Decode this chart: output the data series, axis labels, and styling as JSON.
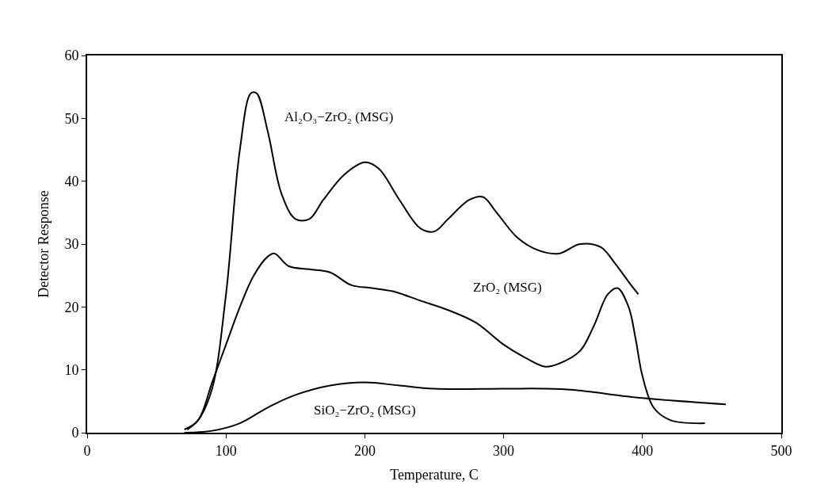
{
  "chart_data": {
    "type": "line",
    "xlabel": "Temperature, C",
    "ylabel": "Detector Response",
    "xlim": [
      0,
      500
    ],
    "xticks": [
      0,
      100,
      200,
      300,
      400,
      500
    ],
    "ylim": [
      0,
      60
    ],
    "yticks": [
      0,
      10,
      20,
      30,
      40,
      50,
      60
    ],
    "marker": "none",
    "line_style": "solid",
    "series": [
      {
        "name": "Al₂O₃−ZrO₂ (MSG)",
        "color": "#000000",
        "x": [
          72,
          80,
          90,
          100,
          110,
          118,
          122,
          130,
          140,
          150,
          160,
          170,
          185,
          200,
          210,
          225,
          240,
          250,
          260,
          275,
          285,
          295,
          310,
          325,
          340,
          355,
          370,
          380,
          390,
          397
        ],
        "values": [
          0.5,
          2,
          7,
          22,
          45,
          54,
          54,
          48,
          38,
          34,
          34,
          37,
          41,
          43,
          42,
          37,
          32.5,
          32,
          34,
          37,
          37.5,
          35,
          31,
          29,
          28.5,
          30,
          29.5,
          27,
          24,
          22
        ]
      },
      {
        "name": "ZrO₂ (MSG)",
        "color": "#000000",
        "x": [
          70,
          80,
          90,
          100,
          110,
          120,
          130,
          135,
          145,
          160,
          175,
          190,
          205,
          220,
          240,
          260,
          280,
          300,
          315,
          330,
          340,
          355,
          365,
          375,
          382,
          390,
          395,
          400,
          408,
          420,
          445
        ],
        "values": [
          0.5,
          2,
          8,
          14,
          20,
          25,
          28,
          28.5,
          26.5,
          26,
          25.5,
          23.5,
          23,
          22.5,
          21,
          19.5,
          17.5,
          14,
          12,
          10.5,
          11,
          13,
          17,
          22,
          23,
          20,
          15,
          9,
          4,
          2,
          1.5
        ]
      },
      {
        "name": "SiO₂−ZrO₂ (MSG)",
        "color": "#000000",
        "x": [
          70,
          90,
          110,
          130,
          150,
          175,
          200,
          225,
          250,
          300,
          330,
          350,
          400,
          460
        ],
        "values": [
          0,
          0.3,
          1.5,
          4,
          6,
          7.5,
          8,
          7.5,
          7,
          7,
          7,
          6.8,
          5.5,
          4.5
        ]
      }
    ]
  }
}
